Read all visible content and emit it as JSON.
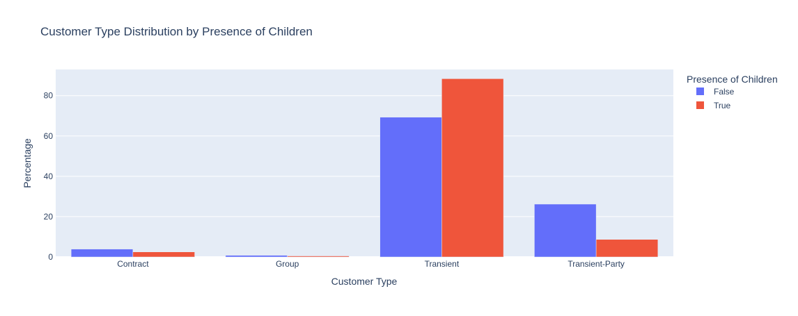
{
  "chart_data": {
    "type": "bar",
    "title": "Customer Type Distribution by Presence of Children",
    "xlabel": "Customer Type",
    "ylabel": "Percentage",
    "categories": [
      "Contract",
      "Group",
      "Transient",
      "Transient-Party"
    ],
    "series": [
      {
        "name": "False",
        "color": "#636efa",
        "values": [
          3.9,
          0.8,
          69.3,
          26.2
        ]
      },
      {
        "name": "True",
        "color": "#ef553b",
        "values": [
          2.5,
          0.5,
          88.4,
          8.7
        ]
      }
    ],
    "ylim": [
      0,
      93
    ],
    "yticks": [
      0,
      20,
      40,
      60,
      80
    ],
    "grid": true,
    "legend": {
      "title": "Presence of Children",
      "position": "top-right"
    },
    "plot_background": "#e5ecf6"
  }
}
